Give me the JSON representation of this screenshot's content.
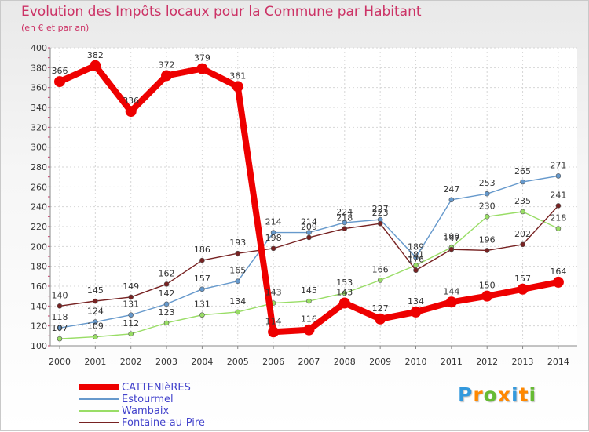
{
  "header": {
    "title": "Evolution des Impôts locaux pour la Commune par Habitant",
    "subtitle": "(en € et par an)"
  },
  "brand": {
    "text": "Proxiti",
    "letter_colors": [
      "#3399dd",
      "#ff8800",
      "#66bb33",
      "#ff8800",
      "#3399dd",
      "#ff8800",
      "#66bb33"
    ]
  },
  "chart_data": {
    "type": "line",
    "title": "Evolution des Impôts locaux pour la Commune par Habitant",
    "subtitle": "(en € et par an)",
    "xlabel": "",
    "ylabel": "",
    "x": [
      "2000",
      "2001",
      "2002",
      "2003",
      "2004",
      "2005",
      "2006",
      "2007",
      "2008",
      "2009",
      "2010",
      "2011",
      "2012",
      "2013",
      "2014"
    ],
    "ylim": [
      100,
      400
    ],
    "yticks": [
      100,
      120,
      140,
      160,
      180,
      200,
      220,
      240,
      260,
      280,
      300,
      320,
      340,
      360,
      380,
      400
    ],
    "grid": true,
    "legend_position": "bottom-left",
    "series": [
      {
        "name": "CATTENIèRES",
        "color": "#ee0000",
        "values": [
          366,
          382,
          336,
          372,
          379,
          361,
          114,
          116,
          143,
          127,
          134,
          144,
          150,
          157,
          164
        ],
        "labels": [
          "366",
          "382",
          "336",
          "372",
          "379",
          "361",
          "114",
          "116",
          "143",
          "127",
          "134",
          "144",
          "150",
          "157",
          "164"
        ]
      },
      {
        "name": "Estourmel",
        "color": "#6699cc",
        "values": [
          118,
          124,
          131,
          142,
          157,
          165,
          214,
          214,
          224,
          227,
          189,
          247,
          253,
          265,
          271
        ],
        "labels": [
          "118",
          "124",
          "131",
          "142",
          "157",
          "165",
          "214",
          "214",
          "224",
          "227",
          "189",
          "247",
          "253",
          "265",
          "271"
        ]
      },
      {
        "name": "Wambaix",
        "color": "#99dd66",
        "values": [
          107,
          109,
          112,
          123,
          131,
          134,
          143,
          145,
          153,
          166,
          181,
          199,
          230,
          235,
          218
        ],
        "labels": [
          "107",
          "109",
          "112",
          "123",
          "131",
          "134",
          "143",
          "145",
          "153",
          "166",
          "181",
          "199",
          "230",
          "235",
          "218"
        ]
      },
      {
        "name": "Fontaine-au-Pire",
        "color": "#772222",
        "values": [
          140,
          145,
          149,
          162,
          186,
          193,
          198,
          209,
          218,
          223,
          176,
          197,
          196,
          202,
          241
        ],
        "labels": [
          "140",
          "145",
          "149",
          "162",
          "186",
          "193",
          "198",
          "209",
          "218",
          "223",
          "176",
          "197",
          "196",
          "202",
          "241"
        ]
      }
    ]
  }
}
